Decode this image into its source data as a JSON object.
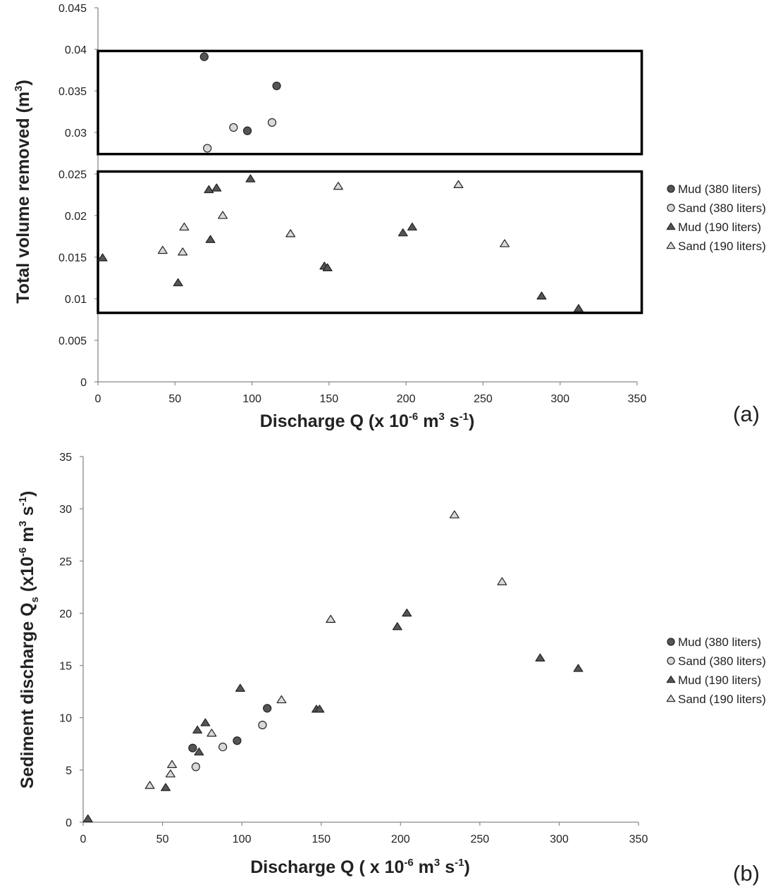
{
  "colors": {
    "mud_fill": "#555555",
    "sand_fill": "#d9d9d9",
    "marker_edge": "#222222",
    "axis": "#888888",
    "box": "#000000"
  },
  "legend": [
    {
      "label": "Mud (380 liters)",
      "marker": "circle",
      "fill": "#555555"
    },
    {
      "label": "Sand (380 liters)",
      "marker": "circle",
      "fill": "#d9d9d9"
    },
    {
      "label": "Mud (190 liters)",
      "marker": "triangle",
      "fill": "#555555"
    },
    {
      "label": "Sand (190 liters)",
      "marker": "triangle",
      "fill": "#d9d9d9"
    }
  ],
  "chart_data": [
    {
      "type": "scatter",
      "panel_label": "(a)",
      "xlabel": "Discharge Q (x 10⁻⁶ m³ s⁻¹)",
      "ylabel": "Total volume removed (m³)",
      "xlim": [
        0,
        350
      ],
      "ylim": [
        0,
        0.045
      ],
      "xticks": [
        0,
        50,
        100,
        150,
        200,
        250,
        300,
        350
      ],
      "yticks": [
        0,
        0.005,
        0.01,
        0.015,
        0.02,
        0.025,
        0.03,
        0.035,
        0.04,
        0.045
      ],
      "ytick_labels": [
        "0",
        "0.005",
        "0.01",
        "0.015",
        "0.02",
        "0.025",
        "0.03",
        "0.035",
        "0.04",
        "0.045"
      ],
      "grid": false,
      "legend_position": "right",
      "annotations": [
        {
          "type": "rectangle",
          "x": [
            0,
            353
          ],
          "y": [
            0.0274,
            0.0398
          ]
        },
        {
          "type": "rectangle",
          "x": [
            0,
            353
          ],
          "y": [
            0.0083,
            0.0253
          ]
        }
      ],
      "series": [
        {
          "name": "Mud (380 liters)",
          "marker": "circle",
          "x": [
            69,
            97,
            116
          ],
          "y": [
            0.0391,
            0.0302,
            0.0356
          ]
        },
        {
          "name": "Sand (380 liters)",
          "marker": "circle",
          "x": [
            71,
            88,
            113
          ],
          "y": [
            0.0281,
            0.0306,
            0.0312
          ]
        },
        {
          "name": "Mud (190 liters)",
          "marker": "triangle",
          "x": [
            3,
            52,
            72,
            73,
            77,
            99,
            147,
            149,
            198,
            204,
            288,
            312
          ],
          "y": [
            0.0149,
            0.0119,
            0.0231,
            0.0171,
            0.0233,
            0.0244,
            0.0139,
            0.0137,
            0.0179,
            0.0186,
            0.0103,
            0.0088
          ]
        },
        {
          "name": "Sand (190 liters)",
          "marker": "triangle",
          "x": [
            42,
            55,
            56,
            81,
            125,
            156,
            234,
            264
          ],
          "y": [
            0.0158,
            0.0156,
            0.0186,
            0.02,
            0.0178,
            0.0235,
            0.0237,
            0.0166
          ]
        }
      ]
    },
    {
      "type": "scatter",
      "panel_label": "(b)",
      "xlabel": "Discharge  Q ( x 10⁻⁶ m³ s⁻¹)",
      "ylabel": "Sediment discharge  Qₛ (x10⁻⁶ m³ s⁻¹)",
      "xlim": [
        0,
        350
      ],
      "ylim": [
        0,
        35
      ],
      "xticks": [
        0,
        50,
        100,
        150,
        200,
        250,
        300,
        350
      ],
      "yticks": [
        0,
        5,
        10,
        15,
        20,
        25,
        30,
        35
      ],
      "ytick_labels": [
        "0",
        "5",
        "10",
        "15",
        "20",
        "25",
        "30",
        "35"
      ],
      "grid": false,
      "legend_position": "right",
      "series": [
        {
          "name": "Mud (380 liters)",
          "marker": "circle",
          "x": [
            69,
            97,
            116
          ],
          "y": [
            7.1,
            7.8,
            10.9
          ]
        },
        {
          "name": "Sand (380 liters)",
          "marker": "circle",
          "x": [
            71,
            88,
            113
          ],
          "y": [
            5.3,
            7.2,
            9.3
          ]
        },
        {
          "name": "Mud (190 liters)",
          "marker": "triangle",
          "x": [
            3,
            52,
            72,
            73,
            77,
            99,
            147,
            149,
            198,
            204,
            288,
            312
          ],
          "y": [
            0.3,
            3.3,
            8.8,
            6.7,
            9.5,
            12.8,
            10.8,
            10.8,
            18.7,
            20.0,
            15.7,
            14.7
          ]
        },
        {
          "name": "Sand (190 liters)",
          "marker": "triangle",
          "x": [
            42,
            55,
            56,
            81,
            125,
            156,
            234,
            264
          ],
          "y": [
            3.5,
            4.6,
            5.5,
            8.5,
            11.7,
            19.4,
            29.4,
            23.0
          ]
        }
      ]
    }
  ]
}
